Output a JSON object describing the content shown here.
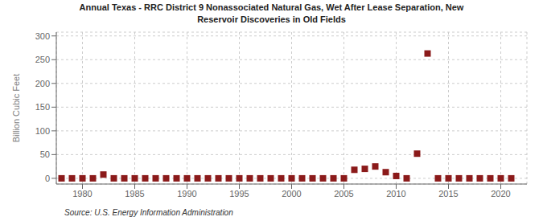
{
  "chart_data": {
    "type": "scatter",
    "title": "Annual Texas - RRC District 9 Nonassociated Natural Gas, Wet After Lease Separation, New\nReservoir Discoveries in Old Fields",
    "y_label": "Billion Cubic Feet",
    "source": "Source: U.S. Energy Information Administration",
    "color": "#8b1a1a",
    "marker": "square",
    "grid": true,
    "xlim": [
      1977.5,
      2022.5
    ],
    "ylim": [
      -12,
      308
    ],
    "xticks": [
      1980,
      1985,
      1990,
      1995,
      2000,
      2005,
      2010,
      2015,
      2020
    ],
    "yticks": [
      0,
      50,
      100,
      150,
      200,
      250,
      300
    ],
    "x": [
      1978,
      1979,
      1980,
      1981,
      1982,
      1983,
      1984,
      1985,
      1986,
      1987,
      1988,
      1989,
      1990,
      1991,
      1992,
      1993,
      1994,
      1995,
      1996,
      1997,
      1998,
      1999,
      2000,
      2001,
      2002,
      2003,
      2004,
      2005,
      2006,
      2007,
      2008,
      2009,
      2010,
      2011,
      2012,
      2013,
      2014,
      2015,
      2016,
      2017,
      2018,
      2019,
      2020,
      2021
    ],
    "values": [
      0,
      0,
      0,
      0,
      8,
      0,
      0,
      0,
      0,
      0,
      0,
      0,
      0,
      0,
      0,
      0,
      0,
      0,
      0,
      0,
      0,
      0,
      0,
      0,
      0,
      0,
      0,
      0,
      18,
      20,
      25,
      13,
      5,
      0,
      52,
      263,
      0,
      0,
      0,
      0,
      0,
      0,
      0,
      0
    ]
  }
}
